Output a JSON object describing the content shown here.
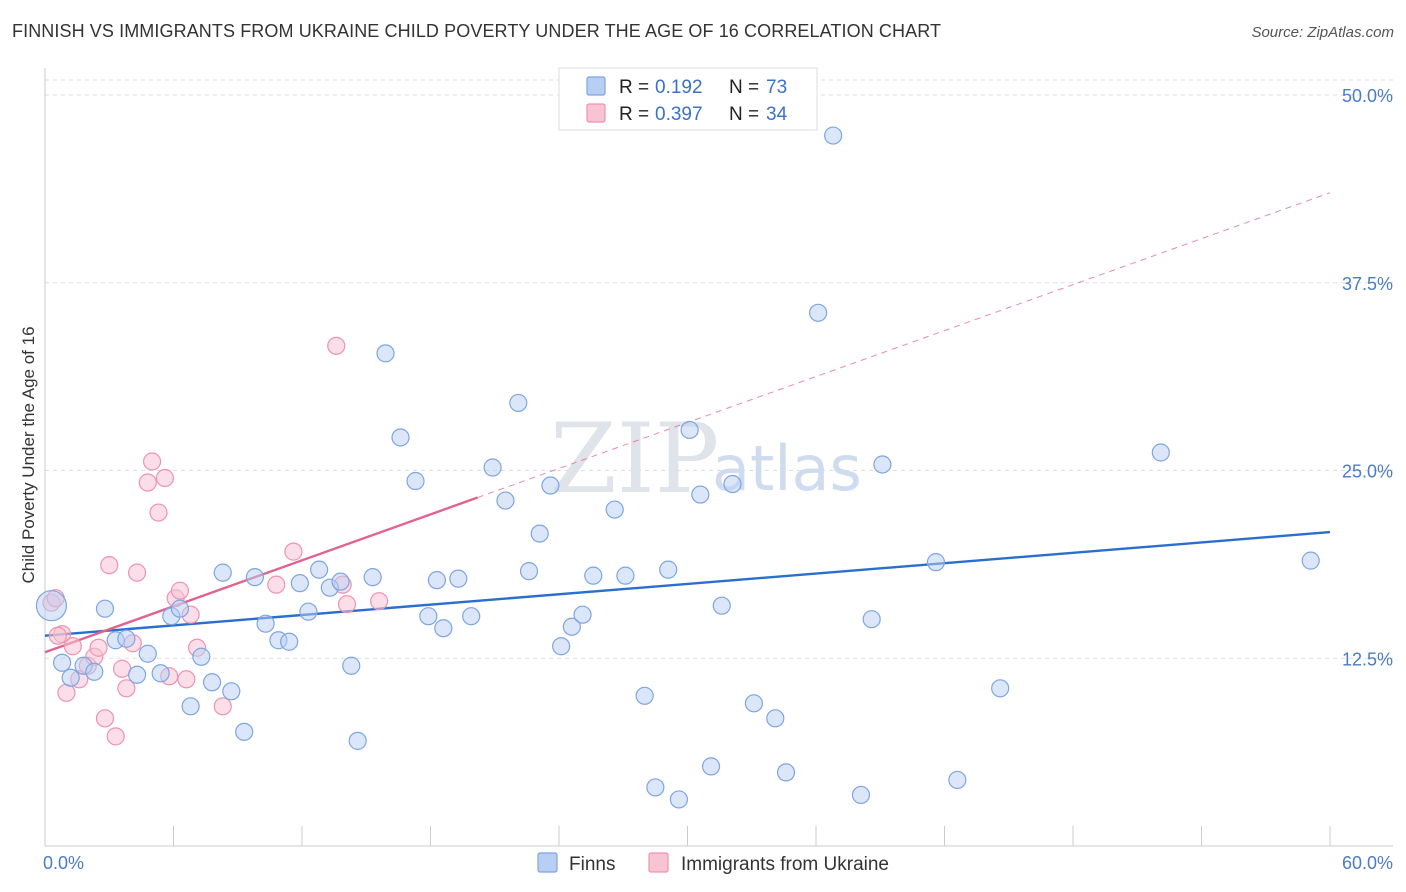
{
  "title": "FINNISH VS IMMIGRANTS FROM UKRAINE CHILD POVERTY UNDER THE AGE OF 16 CORRELATION CHART",
  "source": "Source: ZipAtlas.com",
  "watermark": {
    "zip": "ZIP",
    "atlas": "atlas"
  },
  "colors": {
    "finns_fill": "#b7cff3",
    "finns_stroke": "#7ea5e2",
    "finns_line": "#2a6fcf",
    "ukraine_fill": "#f8c3d3",
    "ukraine_stroke": "#ee93b0",
    "ukraine_line": "#e0648e",
    "tick_label": "#4a7cc7",
    "grid": "#dddddd"
  },
  "legend": {
    "rows": [
      {
        "r_label": "R =",
        "r_value": "0.192",
        "n_label": "N =",
        "n_value": "73"
      },
      {
        "r_label": "R =",
        "r_value": "0.397",
        "n_label": "N =",
        "n_value": "34"
      }
    ]
  },
  "chart_data": {
    "type": "scatter",
    "title": "FINNISH VS IMMIGRANTS FROM UKRAINE CHILD POVERTY UNDER THE AGE OF 16 CORRELATION CHART",
    "xlabel": "",
    "ylabel": "Child Poverty Under the Age of 16",
    "xlim": [
      0,
      60
    ],
    "ylim": [
      0,
      51
    ],
    "x_tick_labels": [
      "0.0%",
      "60.0%"
    ],
    "y_ticks": [
      12.5,
      25.0,
      37.5,
      50.0
    ],
    "y_tick_labels": [
      "12.5%",
      "25.0%",
      "37.5%",
      "50.0%"
    ],
    "series": [
      {
        "name": "Finns",
        "r": 0.192,
        "n": 73,
        "trend": {
          "x0": 0,
          "y0": 14.0,
          "x1": 60,
          "y1": 20.9,
          "dashed_to": 60
        },
        "points": [
          [
            0.3,
            16.0
          ],
          [
            0.8,
            12.2
          ],
          [
            1.2,
            11.2
          ],
          [
            1.8,
            12.0
          ],
          [
            2.3,
            11.6
          ],
          [
            2.8,
            15.8
          ],
          [
            3.3,
            13.7
          ],
          [
            3.8,
            13.8
          ],
          [
            4.3,
            11.4
          ],
          [
            4.8,
            12.8
          ],
          [
            5.4,
            11.5
          ],
          [
            5.9,
            15.3
          ],
          [
            6.3,
            15.8
          ],
          [
            6.8,
            9.3
          ],
          [
            7.3,
            12.6
          ],
          [
            7.8,
            10.9
          ],
          [
            8.3,
            18.2
          ],
          [
            8.7,
            10.3
          ],
          [
            9.3,
            7.6
          ],
          [
            9.8,
            17.9
          ],
          [
            10.3,
            14.8
          ],
          [
            10.9,
            13.7
          ],
          [
            11.4,
            13.6
          ],
          [
            11.9,
            17.5
          ],
          [
            12.3,
            15.6
          ],
          [
            12.8,
            18.4
          ],
          [
            13.3,
            17.2
          ],
          [
            13.8,
            17.6
          ],
          [
            14.3,
            12.0
          ],
          [
            14.6,
            7.0
          ],
          [
            15.3,
            17.9
          ],
          [
            15.9,
            32.8
          ],
          [
            16.6,
            27.2
          ],
          [
            17.3,
            24.3
          ],
          [
            17.9,
            15.3
          ],
          [
            18.3,
            17.7
          ],
          [
            18.6,
            14.5
          ],
          [
            19.3,
            17.8
          ],
          [
            19.9,
            15.3
          ],
          [
            20.9,
            25.2
          ],
          [
            21.5,
            23.0
          ],
          [
            22.1,
            29.5
          ],
          [
            22.6,
            18.3
          ],
          [
            23.1,
            20.8
          ],
          [
            23.6,
            24.0
          ],
          [
            24.1,
            13.3
          ],
          [
            24.6,
            14.6
          ],
          [
            25.1,
            15.4
          ],
          [
            25.6,
            18.0
          ],
          [
            26.6,
            22.4
          ],
          [
            27.1,
            18.0
          ],
          [
            28.0,
            10.0
          ],
          [
            28.5,
            3.9
          ],
          [
            29.1,
            18.4
          ],
          [
            29.6,
            3.1
          ],
          [
            30.1,
            27.7
          ],
          [
            30.6,
            23.4
          ],
          [
            31.1,
            5.3
          ],
          [
            31.6,
            16.0
          ],
          [
            32.1,
            24.1
          ],
          [
            33.1,
            9.5
          ],
          [
            34.1,
            8.5
          ],
          [
            34.6,
            4.9
          ],
          [
            36.1,
            35.5
          ],
          [
            38.1,
            3.4
          ],
          [
            38.6,
            15.1
          ],
          [
            39.1,
            25.4
          ],
          [
            41.6,
            18.9
          ],
          [
            42.6,
            4.4
          ],
          [
            44.6,
            10.5
          ],
          [
            52.1,
            26.2
          ],
          [
            59.1,
            19.0
          ],
          [
            36.8,
            47.3
          ]
        ]
      },
      {
        "name": "Immigrants from Ukraine",
        "r": 0.397,
        "n": 34,
        "trend": {
          "x0": 0,
          "y0": 12.9,
          "x1": 20.2,
          "y1": 23.2,
          "dashed_to": 60
        },
        "points": [
          [
            0.3,
            16.2
          ],
          [
            0.5,
            16.5
          ],
          [
            0.8,
            14.1
          ],
          [
            1.0,
            10.2
          ],
          [
            1.3,
            13.3
          ],
          [
            1.6,
            11.1
          ],
          [
            2.0,
            12.0
          ],
          [
            2.3,
            12.6
          ],
          [
            2.5,
            13.2
          ],
          [
            2.8,
            8.5
          ],
          [
            3.0,
            18.7
          ],
          [
            3.3,
            7.3
          ],
          [
            3.6,
            11.8
          ],
          [
            3.8,
            10.5
          ],
          [
            4.1,
            13.5
          ],
          [
            4.3,
            18.2
          ],
          [
            4.8,
            24.2
          ],
          [
            5.0,
            25.6
          ],
          [
            5.3,
            22.2
          ],
          [
            5.6,
            24.5
          ],
          [
            5.8,
            11.3
          ],
          [
            6.1,
            16.5
          ],
          [
            6.3,
            17.0
          ],
          [
            6.6,
            11.1
          ],
          [
            6.8,
            15.4
          ],
          [
            7.1,
            13.2
          ],
          [
            8.3,
            9.3
          ],
          [
            10.8,
            17.4
          ],
          [
            11.6,
            19.6
          ],
          [
            13.6,
            33.3
          ],
          [
            13.9,
            17.4
          ],
          [
            14.1,
            16.1
          ],
          [
            15.6,
            16.3
          ],
          [
            0.6,
            14.0
          ]
        ]
      }
    ]
  },
  "bottom_legend": [
    {
      "label": "Finns"
    },
    {
      "label": "Immigrants from Ukraine"
    }
  ]
}
